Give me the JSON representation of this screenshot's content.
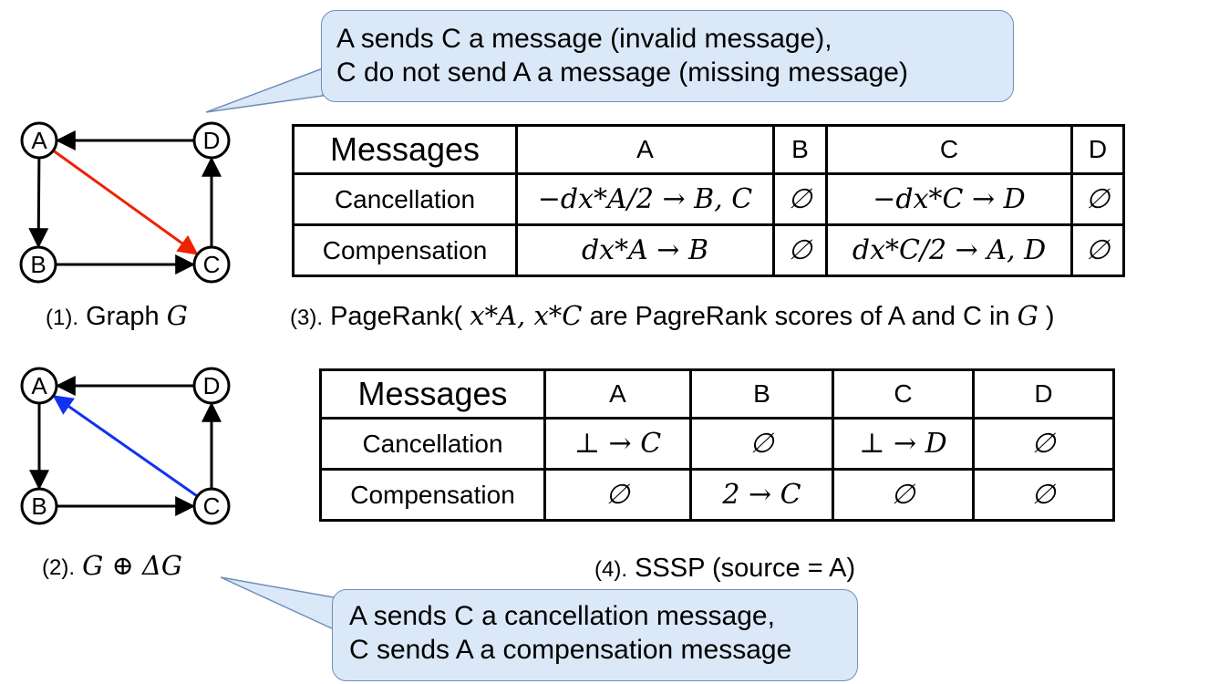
{
  "callouts": {
    "top": {
      "line1": "A sends C a message (invalid message),",
      "line2": "C do not send A a message (missing message)"
    },
    "bottom": {
      "line1": "A sends C a cancellation message,",
      "line2": "C sends A a compensation message"
    }
  },
  "graphs": {
    "g1": {
      "nodes": [
        "A",
        "B",
        "C",
        "D"
      ],
      "edges": [
        {
          "from": "D",
          "to": "A",
          "color": "#000000"
        },
        {
          "from": "A",
          "to": "B",
          "color": "#000000"
        },
        {
          "from": "B",
          "to": "C",
          "color": "#000000"
        },
        {
          "from": "C",
          "to": "D",
          "color": "#000000"
        },
        {
          "from": "A",
          "to": "C",
          "color": "#ee2200"
        }
      ]
    },
    "g2": {
      "nodes": [
        "A",
        "B",
        "C",
        "D"
      ],
      "edges": [
        {
          "from": "D",
          "to": "A",
          "color": "#000000"
        },
        {
          "from": "A",
          "to": "B",
          "color": "#000000"
        },
        {
          "from": "B",
          "to": "C",
          "color": "#000000"
        },
        {
          "from": "C",
          "to": "D",
          "color": "#000000"
        },
        {
          "from": "C",
          "to": "A",
          "color": "#1133ee"
        }
      ]
    }
  },
  "captions": {
    "c1": {
      "num": "(1).",
      "text": "Graph",
      "math": "G"
    },
    "c2": {
      "num": "(2).",
      "math": "G ⊕ ΔG"
    },
    "c3": {
      "num": "(3).",
      "text_a": "PageRank(",
      "math_a": "x*A, x*C",
      "text_b": " are PagreRank scores of A and C in ",
      "math_b": "G",
      "text_c": ")"
    },
    "c4": {
      "num": "(4).",
      "text": "SSSP (source = A)"
    }
  },
  "tables": {
    "pagerank": {
      "headers": [
        "Messages",
        "A",
        "B",
        "C",
        "D"
      ],
      "rows": [
        {
          "label": "Cancellation",
          "cells": [
            "−dx*A/2 → B, C",
            "∅",
            "−dx*C → D",
            "∅"
          ]
        },
        {
          "label": "Compensation",
          "cells": [
            "dx*A → B",
            "∅",
            "dx*C/2 → A, D",
            "∅"
          ]
        }
      ]
    },
    "sssp": {
      "headers": [
        "Messages",
        "A",
        "B",
        "C",
        "D"
      ],
      "rows": [
        {
          "label": "Cancellation",
          "cells": [
            "⊥ → C",
            "∅",
            "⊥ → D",
            "∅"
          ]
        },
        {
          "label": "Compensation",
          "cells": [
            "∅",
            "2 → C",
            "∅",
            "∅"
          ]
        }
      ]
    }
  },
  "colors": {
    "callout_fill": "#dae8f7",
    "callout_border": "#6f8fb8",
    "invalid_edge": "#ee2200",
    "compensation_edge": "#1133ee"
  }
}
